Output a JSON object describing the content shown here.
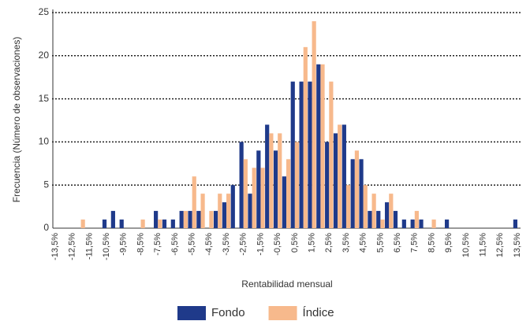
{
  "chart_data": {
    "type": "bar",
    "y_label": "Frecuencia (Número de observaciones)",
    "x_label": "Rentabilidad mensual",
    "categories": [
      "-13,5%",
      null,
      "-12,5%",
      null,
      "-11,5%",
      null,
      "-10,5%",
      null,
      "-9,5%",
      null,
      "-8,5%",
      null,
      "-7,5%",
      null,
      "-6,5%",
      null,
      "-5,5%",
      null,
      "-4,5%",
      null,
      "-3,5%",
      null,
      "-2,5%",
      null,
      "-1,5%",
      null,
      "-0,5%",
      null,
      "0,5%",
      null,
      "1,5%",
      null,
      "2,5%",
      null,
      "3,5%",
      null,
      "4,5%",
      null,
      "5,5%",
      null,
      "6,5%",
      null,
      "7,5%",
      null,
      "8,5%",
      null,
      "9,5%",
      null,
      "10,5%",
      null,
      "11,5%",
      null,
      "12,5%",
      null,
      "13,5%"
    ],
    "series": [
      {
        "name": "Fondo",
        "color": "#1f3a8a",
        "values": [
          0,
          0,
          0,
          0,
          0,
          0,
          1,
          2,
          1,
          0,
          0,
          0,
          2,
          1,
          1,
          2,
          2,
          2,
          0,
          2,
          3,
          5,
          10,
          4,
          9,
          12,
          9,
          6,
          17,
          17,
          17,
          19,
          10,
          11,
          12,
          8,
          8,
          2,
          2,
          3,
          2,
          1,
          1,
          1,
          0,
          0,
          1,
          0,
          0,
          0,
          0,
          0,
          0,
          0,
          1
        ]
      },
      {
        "name": "Índice",
        "color": "#f7b98c",
        "values": [
          0,
          0,
          0,
          1,
          0,
          0,
          0,
          0,
          0,
          0,
          1,
          0,
          1,
          0,
          0,
          2,
          6,
          4,
          2,
          4,
          4,
          0,
          8,
          7,
          7,
          11,
          11,
          8,
          10,
          21,
          24,
          19,
          17,
          12,
          5,
          9,
          5,
          4,
          1,
          4,
          0,
          0,
          2,
          0,
          1,
          0,
          0,
          0,
          0,
          0,
          0,
          0,
          0,
          0,
          0
        ]
      }
    ],
    "ylim": [
      0,
      25
    ],
    "yticks": [
      0,
      5,
      10,
      15,
      20,
      25
    ],
    "grid": true
  }
}
